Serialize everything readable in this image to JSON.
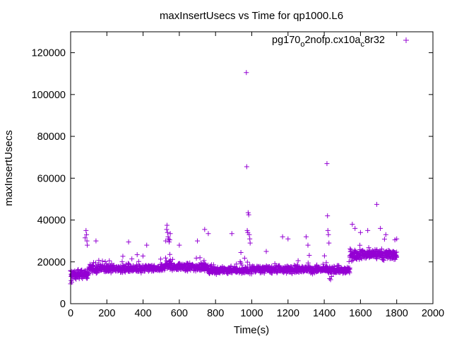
{
  "chart_data": {
    "type": "scatter",
    "title": "maxInsertUsecs vs Time for qp1000.L6",
    "xlabel": "Time(s)",
    "ylabel": "maxInsertUsecs",
    "xlim": [
      0,
      2000
    ],
    "ylim": [
      0,
      130000
    ],
    "x_ticks": [
      "0",
      "200",
      "400",
      "600",
      "800",
      "1000",
      "1200",
      "1400",
      "1600",
      "1800",
      "2000"
    ],
    "y_ticks": [
      "0",
      "20000",
      "40000",
      "60000",
      "80000",
      "100000",
      "120000"
    ],
    "grid": false,
    "legend": {
      "position": "top-right",
      "entries": [
        {
          "label_main": "pg170",
          "label_sub1": "o",
          "label_mid": "2nofp.cx10a",
          "label_sub2": "c",
          "label_end": "8r32",
          "marker": "+"
        }
      ]
    },
    "series": [
      {
        "name": "pg170_o2nofp.cx10a_c8r32",
        "color": "#9400d3",
        "marker": "+",
        "segments": [
          {
            "x_start": 0,
            "x_end": 100,
            "y_base": 14000,
            "y_spread": 3000
          },
          {
            "x_start": 100,
            "x_end": 520,
            "y_base": 16800,
            "y_spread": 2500
          },
          {
            "x_start": 520,
            "x_end": 560,
            "y_base": 18500,
            "y_spread": 3500
          },
          {
            "x_start": 560,
            "x_end": 760,
            "y_base": 17500,
            "y_spread": 2400
          },
          {
            "x_start": 760,
            "x_end": 1000,
            "y_base": 16000,
            "y_spread": 2400
          },
          {
            "x_start": 1000,
            "x_end": 1420,
            "y_base": 16500,
            "y_spread": 2500
          },
          {
            "x_start": 1420,
            "x_end": 1540,
            "y_base": 16000,
            "y_spread": 2500
          },
          {
            "x_start": 1540,
            "x_end": 1800,
            "y_base": 23500,
            "y_spread": 3500
          }
        ],
        "points": [
          {
            "x": 0,
            "y": 9500
          },
          {
            "x": 3,
            "y": 11000
          },
          {
            "x": 6,
            "y": 10200
          },
          {
            "x": 85,
            "y": 35000
          },
          {
            "x": 88,
            "y": 33000
          },
          {
            "x": 90,
            "y": 30000
          },
          {
            "x": 92,
            "y": 28000
          },
          {
            "x": 80,
            "y": 31500
          },
          {
            "x": 140,
            "y": 30000
          },
          {
            "x": 320,
            "y": 29500
          },
          {
            "x": 420,
            "y": 28000
          },
          {
            "x": 525,
            "y": 30000
          },
          {
            "x": 530,
            "y": 35500
          },
          {
            "x": 532,
            "y": 37500
          },
          {
            "x": 535,
            "y": 34000
          },
          {
            "x": 538,
            "y": 32000
          },
          {
            "x": 541,
            "y": 31000
          },
          {
            "x": 544,
            "y": 29500
          },
          {
            "x": 547,
            "y": 30500
          },
          {
            "x": 550,
            "y": 33500
          },
          {
            "x": 600,
            "y": 28000
          },
          {
            "x": 700,
            "y": 30000
          },
          {
            "x": 740,
            "y": 35500
          },
          {
            "x": 760,
            "y": 33500
          },
          {
            "x": 890,
            "y": 33500
          },
          {
            "x": 940,
            "y": 24500
          },
          {
            "x": 970,
            "y": 110500
          },
          {
            "x": 972,
            "y": 65500
          },
          {
            "x": 975,
            "y": 35000
          },
          {
            "x": 978,
            "y": 34000
          },
          {
            "x": 980,
            "y": 43500
          },
          {
            "x": 983,
            "y": 42500
          },
          {
            "x": 986,
            "y": 33000
          },
          {
            "x": 989,
            "y": 31000
          },
          {
            "x": 991,
            "y": 29000
          },
          {
            "x": 1080,
            "y": 25000
          },
          {
            "x": 1170,
            "y": 32000
          },
          {
            "x": 1200,
            "y": 31000
          },
          {
            "x": 1300,
            "y": 32000
          },
          {
            "x": 1310,
            "y": 28000
          },
          {
            "x": 1415,
            "y": 67000
          },
          {
            "x": 1418,
            "y": 42000
          },
          {
            "x": 1420,
            "y": 35000
          },
          {
            "x": 1423,
            "y": 33000
          },
          {
            "x": 1426,
            "y": 29000
          },
          {
            "x": 1430,
            "y": 12000
          },
          {
            "x": 1435,
            "y": 11500
          },
          {
            "x": 1440,
            "y": 13000
          },
          {
            "x": 1555,
            "y": 38000
          },
          {
            "x": 1570,
            "y": 36000
          },
          {
            "x": 1600,
            "y": 34000
          },
          {
            "x": 1640,
            "y": 35000
          },
          {
            "x": 1690,
            "y": 47500
          },
          {
            "x": 1710,
            "y": 36000
          },
          {
            "x": 1740,
            "y": 33000
          },
          {
            "x": 1790,
            "y": 30500
          },
          {
            "x": 1800,
            "y": 31000
          }
        ]
      }
    ]
  }
}
